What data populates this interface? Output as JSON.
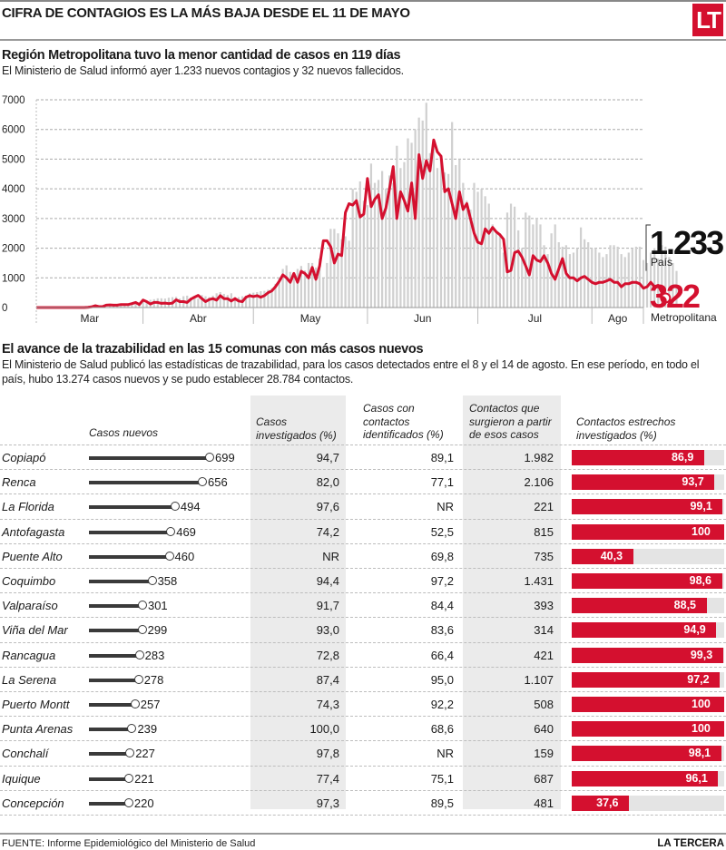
{
  "header": {
    "title": "CIFRA DE CONTAGIOS ES LA MÁS BAJA DESDE EL 11 DE MAYO",
    "logo": "LT"
  },
  "section1": {
    "title": "Región Metropolitana tuvo la menor cantidad de casos en 119 días",
    "subtitle": "El Ministerio de Salud informó ayer 1.233 nuevos contagios y 32 nuevos fallecidos."
  },
  "chart_data": {
    "type": "line",
    "title": "Región Metropolitana tuvo la menor cantidad de casos en 119 días",
    "xlabel": "",
    "ylabel": "",
    "ylim": [
      0,
      7000
    ],
    "yticks": [
      0,
      1000,
      2000,
      3000,
      4000,
      5000,
      6000,
      7000
    ],
    "grid": true,
    "x_start": "03-03",
    "x_end": "08-14",
    "month_labels": [
      {
        "label": "Mar",
        "start_day": 0,
        "end_day": 29
      },
      {
        "label": "Abr",
        "start_day": 29,
        "end_day": 59
      },
      {
        "label": "May",
        "start_day": 59,
        "end_day": 90
      },
      {
        "label": "Jun",
        "start_day": 90,
        "end_day": 120
      },
      {
        "label": "Jul",
        "start_day": 120,
        "end_day": 151
      },
      {
        "label": "Ago",
        "start_day": 151,
        "end_day": 165
      }
    ],
    "series": [
      {
        "name": "País",
        "mark": "bar",
        "color": "#d0d0d0",
        "start_day": 20,
        "values": [
          40,
          60,
          75,
          85,
          90,
          95,
          120,
          140,
          170,
          200,
          230,
          260,
          280,
          310,
          310,
          300,
          330,
          350,
          360,
          300,
          380,
          400,
          330,
          350,
          300,
          420,
          380,
          350,
          400,
          480,
          520,
          460,
          420,
          480,
          350,
          350,
          380,
          400,
          480,
          500,
          520,
          550,
          560,
          600,
          650,
          800,
          1000,
          1300,
          1420,
          1200,
          1100,
          1300,
          1400,
          1250,
          1500,
          1500,
          1350,
          1650,
          1000,
          1500,
          2650,
          2650,
          2500,
          2300,
          2400,
          2250,
          4000,
          3900,
          4250,
          3600,
          3450,
          4850,
          4200,
          4300,
          4600,
          4000,
          4450,
          4200,
          5450,
          4700,
          4900,
          5700,
          5550,
          6000,
          6400,
          6300,
          6900,
          5200,
          5600,
          4700,
          5100,
          4550,
          4500,
          6250,
          4800,
          5000,
          4200,
          3600,
          3300,
          4200,
          3900,
          4000,
          3750,
          3500,
          2800,
          2500,
          2500,
          1850,
          3200,
          3500,
          3400,
          2600,
          2000,
          3200,
          3100,
          2800,
          3000,
          2800,
          2100,
          1800,
          2500,
          2800,
          2200,
          2050,
          2100,
          1800,
          1850,
          2000,
          2700,
          2300,
          2200,
          2000,
          2000,
          1850,
          1700,
          1800,
          2100,
          2100,
          2050,
          1800,
          1700,
          1850,
          2000,
          2050,
          2050,
          1600,
          1500,
          1850,
          2000,
          1650,
          2100,
          2050,
          1700,
          1500,
          1233
        ]
      },
      {
        "name": "Metropolitana",
        "mark": "line",
        "color": "#d4102f",
        "start_day": 0,
        "values": [
          0,
          0,
          0,
          0,
          0,
          0,
          0,
          0,
          0,
          0,
          0,
          0,
          0,
          0,
          10,
          20,
          60,
          30,
          30,
          80,
          90,
          80,
          80,
          100,
          100,
          100,
          130,
          170,
          100,
          250,
          200,
          120,
          170,
          170,
          140,
          150,
          130,
          150,
          260,
          200,
          200,
          170,
          280,
          350,
          410,
          300,
          200,
          270,
          300,
          250,
          400,
          300,
          300,
          220,
          300,
          220,
          200,
          350,
          400,
          370,
          400,
          350,
          400,
          500,
          560,
          700,
          880,
          1100,
          1000,
          850,
          1150,
          850,
          1220,
          1150,
          1000,
          1350,
          950,
          1400,
          2250,
          2250,
          2050,
          1500,
          1800,
          1750,
          3200,
          3500,
          3450,
          3600,
          3050,
          3150,
          4350,
          3400,
          3650,
          3800,
          3000,
          3350,
          4000,
          4750,
          3000,
          3900,
          3600,
          3250,
          4200,
          3000,
          5150,
          4350,
          4950,
          4600,
          5650,
          5250,
          5100,
          3900,
          4000,
          3500,
          3000,
          3900,
          3300,
          3500,
          3000,
          2500,
          2200,
          2150,
          2650,
          2500,
          2700,
          2550,
          2450,
          2300,
          1200,
          1250,
          1850,
          1900,
          1700,
          1400,
          1100,
          1750,
          1600,
          1550,
          1750,
          1500,
          1150,
          950,
          1300,
          1650,
          1150,
          1000,
          1000,
          900,
          1000,
          1050,
          950,
          850,
          800,
          850,
          850,
          900,
          950,
          850,
          850,
          700,
          800,
          800,
          850,
          850,
          800,
          650,
          700,
          850,
          700,
          750,
          500,
          322
        ]
      }
    ],
    "annotations": [
      {
        "label": "País",
        "value": "1.233"
      },
      {
        "label": "Metropolitana",
        "value": "322"
      }
    ]
  },
  "callout": {
    "pais_value": "1.233",
    "pais_label": "País",
    "rm_value": "322",
    "rm_label": "Metropolitana"
  },
  "section2": {
    "title": "El avance de la trazabilidad en las 15 comunas con más casos nuevos",
    "subtitle_line1": "El Ministerio de Salud publicó las estadísticas de trazabilidad, para los casos detectados entre el 8 y el 14 de agosto. En ese período, en todo el",
    "subtitle_line2": "país, hubo 13.274 casos nuevos y se pudo establecer 28.784 contactos."
  },
  "table": {
    "headers": {
      "casos_nuevos": "Casos nuevos",
      "investigados_1": "Casos",
      "investigados_2": "investigados (%)",
      "identificados_1": "Casos con",
      "identificados_2": "contactos",
      "identificados_3": "identificados (%)",
      "surgieron_1": "Contactos que",
      "surgieron_2": "surgieron a partir",
      "surgieron_3": "de esos casos",
      "estrechos_1": "Contactos estrechos",
      "estrechos_2": "investigados (%)"
    },
    "casos_nuevos_max": 699,
    "rows": [
      {
        "comuna": "Copiapó",
        "casos_nuevos": 699,
        "investigados": "94,7",
        "identificados": "89,1",
        "contactos": "1.982",
        "estrechos": 86.9,
        "estrechos_label": "86,9"
      },
      {
        "comuna": "Renca",
        "casos_nuevos": 656,
        "investigados": "82,0",
        "identificados": "77,1",
        "contactos": "2.106",
        "estrechos": 93.7,
        "estrechos_label": "93,7"
      },
      {
        "comuna": "La Florida",
        "casos_nuevos": 494,
        "investigados": "97,6",
        "identificados": "NR",
        "contactos": "221",
        "estrechos": 99.1,
        "estrechos_label": "99,1"
      },
      {
        "comuna": "Antofagasta",
        "casos_nuevos": 469,
        "investigados": "74,2",
        "identificados": "52,5",
        "contactos": "815",
        "estrechos": 100,
        "estrechos_label": "100"
      },
      {
        "comuna": "Puente Alto",
        "casos_nuevos": 460,
        "investigados": "NR",
        "identificados": "69,8",
        "contactos": "735",
        "estrechos": 40.3,
        "estrechos_label": "40,3"
      },
      {
        "comuna": "Coquimbo",
        "casos_nuevos": 358,
        "investigados": "94,4",
        "identificados": "97,2",
        "contactos": "1.431",
        "estrechos": 98.6,
        "estrechos_label": "98,6"
      },
      {
        "comuna": "Valparaíso",
        "casos_nuevos": 301,
        "investigados": "91,7",
        "identificados": "84,4",
        "contactos": "393",
        "estrechos": 88.5,
        "estrechos_label": "88,5"
      },
      {
        "comuna": "Viña del Mar",
        "casos_nuevos": 299,
        "investigados": "93,0",
        "identificados": "83,6",
        "contactos": "314",
        "estrechos": 94.9,
        "estrechos_label": "94,9"
      },
      {
        "comuna": "Rancagua",
        "casos_nuevos": 283,
        "investigados": "72,8",
        "identificados": "66,4",
        "contactos": "421",
        "estrechos": 99.3,
        "estrechos_label": "99,3"
      },
      {
        "comuna": "La Serena",
        "casos_nuevos": 278,
        "investigados": "87,4",
        "identificados": "95,0",
        "contactos": "1.107",
        "estrechos": 97.2,
        "estrechos_label": "97,2"
      },
      {
        "comuna": "Puerto Montt",
        "casos_nuevos": 257,
        "investigados": "74,3",
        "identificados": "92,2",
        "contactos": "508",
        "estrechos": 100,
        "estrechos_label": "100"
      },
      {
        "comuna": "Punta Arenas",
        "casos_nuevos": 239,
        "investigados": "100,0",
        "identificados": "68,6",
        "contactos": "640",
        "estrechos": 100,
        "estrechos_label": "100"
      },
      {
        "comuna": "Conchalí",
        "casos_nuevos": 227,
        "investigados": "97,8",
        "identificados": "NR",
        "contactos": "159",
        "estrechos": 98.1,
        "estrechos_label": "98,1"
      },
      {
        "comuna": "Iquique",
        "casos_nuevos": 221,
        "investigados": "77,4",
        "identificados": "75,1",
        "contactos": "687",
        "estrechos": 96.1,
        "estrechos_label": "96,1"
      },
      {
        "comuna": "Concepción",
        "casos_nuevos": 220,
        "investigados": "97,3",
        "identificados": "89,5",
        "contactos": "481",
        "estrechos": 37.6,
        "estrechos_label": "37,6"
      }
    ]
  },
  "footer": {
    "source": "FUENTE: Informe Epidemiológico del Ministerio de Salud",
    "brand": "LA TERCERA"
  },
  "colors": {
    "accent": "#d4102f",
    "bar": "#d0d0d0",
    "lollipop": "#3a3a3a",
    "column_shade": "#ebebeb"
  }
}
